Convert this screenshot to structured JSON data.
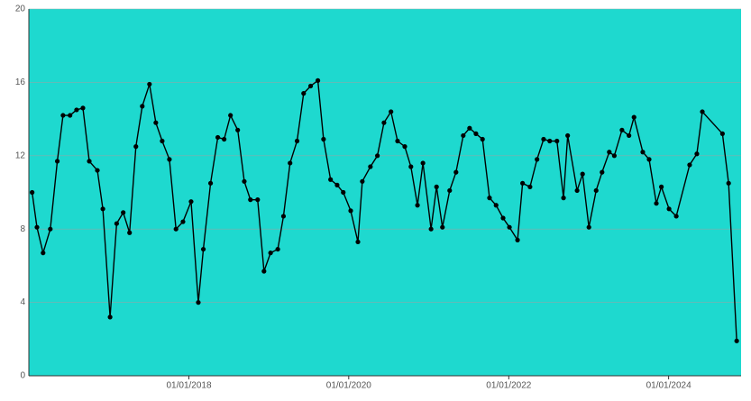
{
  "chart_data": {
    "type": "line",
    "x": [
      "2016-01-16",
      "2016-02-07",
      "2016-03-06",
      "2016-04-08",
      "2016-05-10",
      "2016-06-05",
      "2016-07-07",
      "2016-08-06",
      "2016-09-04",
      "2016-10-03",
      "2016-11-09",
      "2016-12-04",
      "2017-01-06",
      "2017-02-05",
      "2017-03-07",
      "2017-04-05",
      "2017-05-04",
      "2017-06-02",
      "2017-07-05",
      "2017-08-03",
      "2017-09-01",
      "2017-10-04",
      "2017-11-03",
      "2017-12-05",
      "2018-01-11",
      "2018-02-13",
      "2018-03-08",
      "2018-04-10",
      "2018-05-13",
      "2018-06-11",
      "2018-07-10",
      "2018-08-12",
      "2018-09-11",
      "2018-10-09",
      "2018-11-11",
      "2018-12-10",
      "2019-01-09",
      "2019-02-11",
      "2019-03-09",
      "2019-04-08",
      "2019-05-10",
      "2019-06-09",
      "2019-07-11",
      "2019-08-13",
      "2019-09-08",
      "2019-10-10",
      "2019-11-09",
      "2019-12-07",
      "2020-01-10",
      "2020-02-12",
      "2020-03-03",
      "2020-04-09",
      "2020-05-11",
      "2020-06-10",
      "2020-07-12",
      "2020-08-11",
      "2020-09-13",
      "2020-10-11",
      "2020-11-10",
      "2020-12-05",
      "2021-01-11",
      "2021-02-05",
      "2021-03-04",
      "2021-04-06",
      "2021-05-05",
      "2021-06-07",
      "2021-07-06",
      "2021-08-04",
      "2021-09-03",
      "2021-10-05",
      "2021-11-04",
      "2021-12-06",
      "2022-01-04",
      "2022-02-10",
      "2022-03-05",
      "2022-04-08",
      "2022-05-10",
      "2022-06-09",
      "2022-07-07",
      "2022-08-09",
      "2022-09-08",
      "2022-09-27",
      "2022-11-09",
      "2022-12-04",
      "2023-01-02",
      "2023-02-04",
      "2023-03-03",
      "2023-04-05",
      "2023-04-28",
      "2023-06-02",
      "2023-07-04",
      "2023-07-27",
      "2023-09-05",
      "2023-10-04",
      "2023-11-06",
      "2023-11-29",
      "2024-01-03",
      "2024-02-05",
      "2024-04-06",
      "2024-05-09",
      "2024-06-03",
      "2024-09-03",
      "2024-10-01",
      "2024-11-07"
    ],
    "values": [
      10.0,
      8.1,
      6.7,
      8.0,
      11.7,
      14.2,
      14.2,
      14.5,
      14.6,
      11.7,
      11.2,
      9.1,
      3.2,
      8.3,
      8.9,
      7.8,
      12.5,
      14.7,
      15.9,
      13.8,
      12.8,
      11.8,
      8.0,
      8.4,
      9.5,
      4.0,
      6.9,
      10.5,
      13.0,
      12.9,
      14.2,
      13.4,
      10.6,
      9.6,
      9.6,
      5.7,
      6.7,
      6.9,
      8.7,
      11.6,
      12.8,
      15.4,
      15.8,
      16.1,
      12.9,
      10.7,
      10.4,
      10.0,
      9.0,
      7.3,
      10.6,
      11.4,
      12.0,
      13.8,
      14.4,
      12.8,
      12.5,
      11.4,
      9.3,
      11.6,
      8.0,
      10.3,
      8.1,
      10.1,
      11.1,
      13.1,
      13.5,
      13.2,
      12.9,
      9.7,
      9.3,
      8.6,
      8.1,
      7.4,
      10.5,
      10.3,
      11.8,
      12.9,
      12.8,
      12.8,
      9.7,
      13.1,
      10.1,
      11.0,
      8.1,
      10.1,
      11.1,
      12.2,
      12.0,
      13.4,
      13.1,
      14.1,
      12.2,
      11.8,
      9.4,
      10.3,
      9.1,
      8.7,
      11.5,
      12.1,
      14.4,
      13.2,
      10.5,
      1.9
    ],
    "color": "#000000",
    "background": "#1ed9cf",
    "xlim": [
      "2016-01-01",
      "2024-11-27"
    ],
    "xticks": [
      {
        "value": "2018-01-01",
        "label": "01/01/2018"
      },
      {
        "value": "2020-01-01",
        "label": "01/01/2020"
      },
      {
        "value": "2022-01-01",
        "label": "01/01/2022"
      },
      {
        "value": "2024-01-01",
        "label": "01/01/2024"
      }
    ],
    "ylim": [
      0,
      20
    ],
    "yticks": [
      0,
      4,
      8,
      12,
      16,
      20
    ],
    "grid": true
  }
}
